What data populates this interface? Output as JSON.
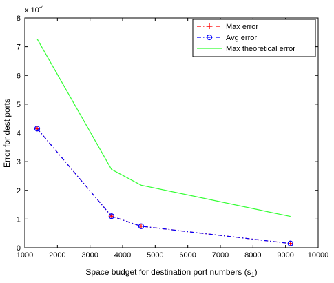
{
  "chart_data": {
    "type": "line",
    "title": "",
    "xlabel": "Space budget for destination port numbers (s",
    "xlabel_subscript": "1",
    "xlabel_suffix": ")",
    "ylabel": "Error for dest ports",
    "y_exponent_base": "x 10",
    "y_exponent_power": "-4",
    "xlim": [
      1000,
      10000
    ],
    "ylim": [
      0,
      8
    ],
    "xticks": [
      1000,
      2000,
      3000,
      4000,
      5000,
      6000,
      7000,
      8000,
      9000,
      10000
    ],
    "yticks": [
      0,
      1,
      2,
      3,
      4,
      5,
      6,
      7,
      8
    ],
    "grid": false,
    "legend_position": "top-right",
    "series": [
      {
        "name": "Max error",
        "color": "#ff0000",
        "line_style": "dashdot",
        "marker": "plus",
        "x": [
          1380,
          3660,
          4570,
          9150
        ],
        "y": [
          4.15,
          1.1,
          0.75,
          0.15
        ]
      },
      {
        "name": "Avg error",
        "color": "#0000ff",
        "line_style": "dashdot",
        "marker": "circle",
        "x": [
          1380,
          3660,
          4570,
          9150
        ],
        "y": [
          4.15,
          1.1,
          0.75,
          0.15
        ]
      },
      {
        "name": "Max theoretical error",
        "color": "#33ff33",
        "line_style": "solid",
        "marker": "none",
        "x": [
          1380,
          3660,
          4570,
          9150
        ],
        "y": [
          7.27,
          2.73,
          2.18,
          1.09
        ]
      }
    ]
  }
}
